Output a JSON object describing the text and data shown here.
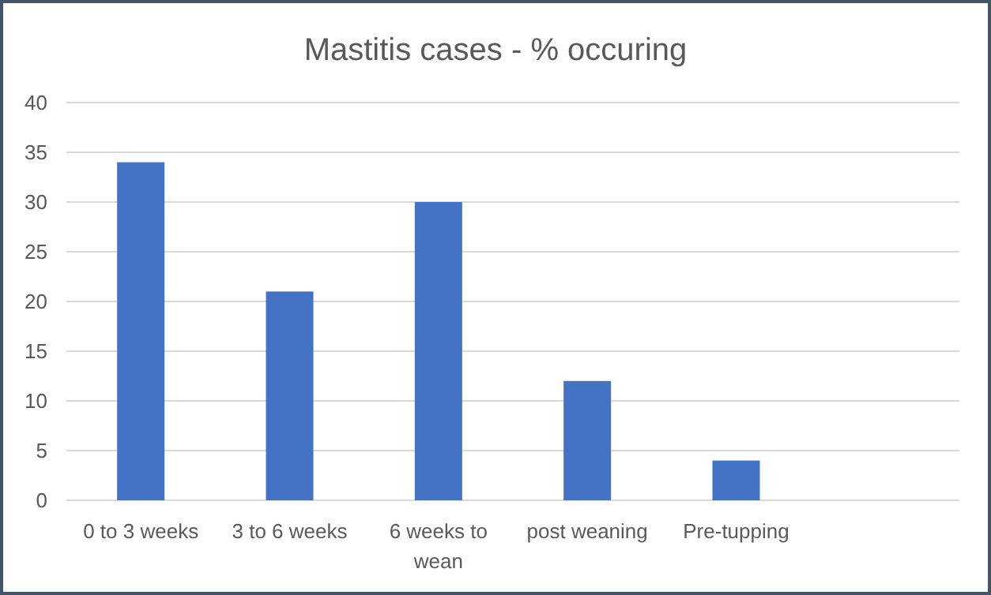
{
  "chart_data": {
    "type": "bar",
    "title": "Mastitis cases - % occuring",
    "categories": [
      "0 to 3 weeks",
      "3 to 6 weeks",
      "6 weeks to wean",
      "post weaning",
      "Pre-tupping",
      null
    ],
    "values": [
      34,
      21,
      30,
      12,
      4,
      null
    ],
    "color": "#4472c4",
    "ylim": [
      0,
      40
    ],
    "yticks": [
      0,
      5,
      10,
      15,
      20,
      25,
      30,
      35,
      40
    ],
    "grid": "y"
  }
}
